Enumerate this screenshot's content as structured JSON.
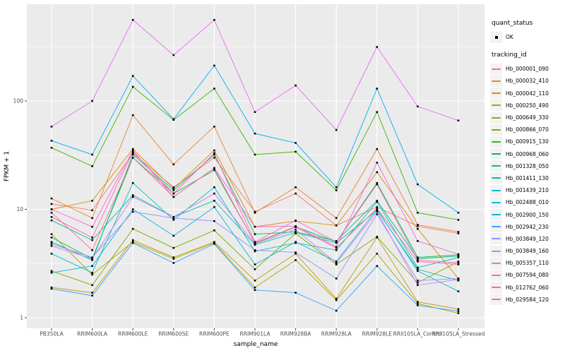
{
  "chart_data": {
    "type": "line",
    "xlabel": "sample_name",
    "ylabel": "FPKM + 1",
    "y_scale": "log10",
    "y_ticks": [
      1,
      10,
      100
    ],
    "ylim": [
      0.8,
      775
    ],
    "grid": true,
    "panel_bg": "#EBEBEB",
    "grid_color": "#FFFFFF",
    "tick_label_color": "#4D4D4D",
    "point_marker": "small-black-square",
    "marker_color": "#000000",
    "legend_position": "right",
    "categories": [
      "PB350LA",
      "RRIM600LA",
      "RRIM600LE",
      "RRIM600SE",
      "RRIM600PE",
      "RRIM901LA",
      "RRIM928BA",
      "RRIM928LA",
      "RRIM928LE",
      "RRII105LA_Control",
      "RRII105LA_Stressed"
    ],
    "legend": {
      "quant_status_title": "quant_status",
      "quant_status_items": [
        "OK"
      ],
      "tracking_id_title": "tracking_id"
    },
    "series": [
      {
        "tracking_id": "Hb_000001_090",
        "color": "#F8766D",
        "values": [
          11.2,
          9.8,
          33,
          16,
          30,
          9.5,
          14,
          7.1,
          10.5,
          7.0,
          6.0
        ]
      },
      {
        "tracking_id": "Hb_000032_410",
        "color": "#EA8331",
        "values": [
          12.6,
          8.3,
          74,
          26,
          58,
          9.3,
          16,
          8.3,
          36,
          7.2,
          6.2
        ]
      },
      {
        "tracking_id": "Hb_000042_110",
        "color": "#D89000",
        "values": [
          10.0,
          12.0,
          36,
          15.5,
          35,
          6.9,
          7.8,
          7.1,
          22,
          6.6,
          2.3
        ]
      },
      {
        "tracking_id": "Hb_000250_490",
        "color": "#C09B00",
        "values": [
          1.9,
          1.7,
          5.2,
          3.6,
          5.0,
          2.2,
          3.9,
          1.5,
          5.5,
          1.4,
          1.2
        ]
      },
      {
        "tracking_id": "Hb_000649_330",
        "color": "#A3A500",
        "values": [
          5.9,
          2.5,
          5.0,
          3.5,
          4.9,
          1.9,
          3.4,
          1.45,
          3.9,
          1.35,
          1.1
        ]
      },
      {
        "tracking_id": "Hb_000866_070",
        "color": "#7CAE00",
        "values": [
          2.7,
          2.0,
          6.6,
          4.4,
          6.4,
          2.8,
          6.0,
          3.1,
          5.6,
          2.1,
          3.3
        ]
      },
      {
        "tracking_id": "Hb_000915_130",
        "color": "#39B600",
        "values": [
          37,
          25,
          135,
          67,
          130,
          32,
          34,
          15,
          79,
          9.3,
          8.0
        ]
      },
      {
        "tracking_id": "Hb_000968_060",
        "color": "#00BB4E",
        "values": [
          5.5,
          3.5,
          30,
          14,
          23,
          4.9,
          6.9,
          5.0,
          17.5,
          3.6,
          3.8
        ]
      },
      {
        "tracking_id": "Hb_001328_050",
        "color": "#00BF7D",
        "values": [
          5.0,
          3.4,
          32,
          15,
          32,
          5.9,
          6.2,
          5.1,
          12,
          3.5,
          3.7
        ]
      },
      {
        "tracking_id": "Hb_001411_130",
        "color": "#00C1A3",
        "values": [
          7.9,
          5.2,
          13.5,
          8.5,
          12,
          4.7,
          6.1,
          4.9,
          9.8,
          2.8,
          2.2
        ]
      },
      {
        "tracking_id": "Hb_001439_210",
        "color": "#00BFC4",
        "values": [
          3.9,
          2.6,
          17.5,
          8.0,
          16,
          4.1,
          4.9,
          4.2,
          11.7,
          2.9,
          3.6
        ]
      },
      {
        "tracking_id": "Hb_002488_010",
        "color": "#00BAE0",
        "values": [
          2.6,
          3.0,
          10,
          5.7,
          10.5,
          3.1,
          5.0,
          3.3,
          10,
          2.7,
          1.75
        ]
      },
      {
        "tracking_id": "Hb_002900_150",
        "color": "#00B0F6",
        "values": [
          43,
          32,
          170,
          68,
          212,
          50,
          41,
          16,
          130,
          17,
          9.3
        ]
      },
      {
        "tracking_id": "Hb_002942_230",
        "color": "#35A2FF",
        "values": [
          1.85,
          1.6,
          4.9,
          3.2,
          4.8,
          1.8,
          1.7,
          1.16,
          3.0,
          1.3,
          1.15
        ]
      },
      {
        "tracking_id": "Hb_003849_120",
        "color": "#9590FF",
        "values": [
          4.8,
          3.6,
          9.5,
          8.3,
          7.8,
          4.2,
          4.0,
          2.3,
          9.0,
          2.2,
          2.3
        ]
      },
      {
        "tracking_id": "Hb_003849_160",
        "color": "#C77CFF",
        "values": [
          4.6,
          3.5,
          13,
          8.5,
          14,
          4.8,
          6.5,
          3.2,
          9.5,
          2.0,
          2.25
        ]
      },
      {
        "tracking_id": "Hb_005357_110",
        "color": "#E76BF3",
        "values": [
          58,
          100,
          560,
          265,
          560,
          79,
          139,
          54,
          315,
          89,
          66
        ]
      },
      {
        "tracking_id": "Hb_007594_080",
        "color": "#FA62DB",
        "values": [
          10.0,
          6.9,
          35,
          13,
          24,
          6.9,
          7.0,
          4.5,
          27,
          5.1,
          3.85
        ]
      },
      {
        "tracking_id": "Hb_012762_060",
        "color": "#FF62BC",
        "values": [
          8.5,
          5.5,
          34,
          14,
          33,
          5.0,
          7.9,
          5.0,
          17,
          3.4,
          3.2
        ]
      },
      {
        "tracking_id": "Hb_029584_120",
        "color": "#FF6A98",
        "values": [
          9.3,
          4.2,
          30,
          13,
          24,
          4.85,
          6.85,
          4.4,
          10.2,
          3.3,
          3.1
        ]
      }
    ]
  }
}
